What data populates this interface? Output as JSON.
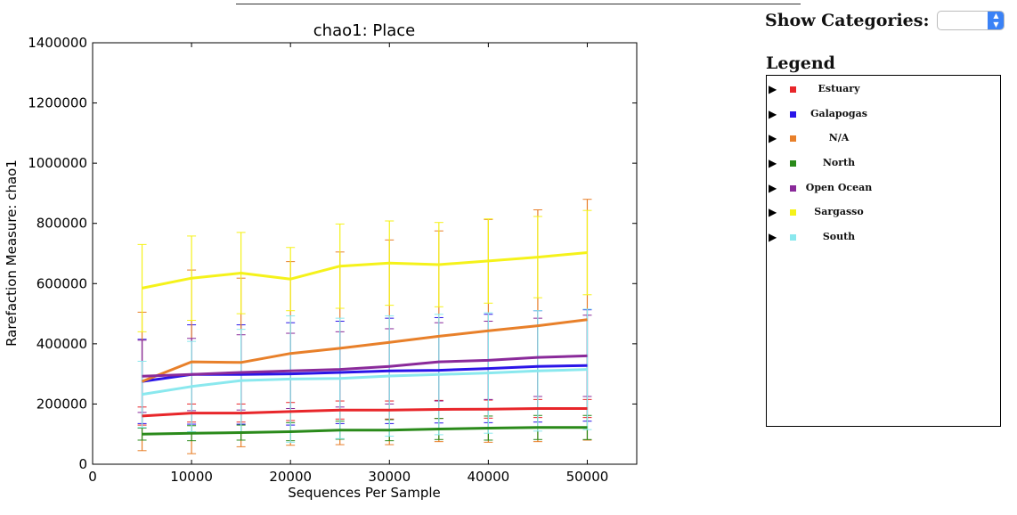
{
  "controls": {
    "show_categories_label": "Show Categories:",
    "selected_value": ""
  },
  "legend": {
    "title": "Legend",
    "items": [
      {
        "label": "Estuary",
        "color": "#e8262a"
      },
      {
        "label": "Galapogas",
        "color": "#2a15e8"
      },
      {
        "label": "N/A",
        "color": "#e8802a"
      },
      {
        "label": "North",
        "color": "#2a8a1a"
      },
      {
        "label": "Open Ocean",
        "color": "#8a2a9a"
      },
      {
        "label": "Sargasso",
        "color": "#f5f21a"
      },
      {
        "label": "South",
        "color": "#8ae8ee"
      }
    ]
  },
  "chart_data": {
    "type": "line",
    "title": "chao1: Place",
    "xlabel": "Sequences Per Sample",
    "ylabel": "Rarefaction Measure: chao1",
    "xlim": [
      0,
      55000
    ],
    "ylim": [
      0,
      1400000
    ],
    "x_ticks": [
      0,
      10000,
      20000,
      30000,
      40000,
      50000
    ],
    "y_ticks": [
      0,
      200000,
      400000,
      600000,
      800000,
      1000000,
      1200000,
      1400000
    ],
    "x": [
      5000,
      10000,
      15000,
      20000,
      25000,
      30000,
      35000,
      40000,
      45000,
      50000
    ],
    "series": [
      {
        "name": "Estuary",
        "color": "#e8262a",
        "values": [
          160000,
          170000,
          170000,
          175000,
          180000,
          180000,
          182000,
          183000,
          185000,
          185000
        ],
        "err": [
          30000,
          30000,
          30000,
          30000,
          30000,
          30000,
          30000,
          30000,
          30000,
          30000
        ]
      },
      {
        "name": "Galapogas",
        "color": "#2a15e8",
        "values": [
          275000,
          298000,
          298000,
          300000,
          305000,
          310000,
          312000,
          318000,
          325000,
          328000
        ],
        "err": [
          140000,
          165000,
          165000,
          170000,
          170000,
          175000,
          175000,
          180000,
          185000,
          185000
        ]
      },
      {
        "name": "N/A",
        "color": "#e8802a",
        "values": [
          275000,
          340000,
          338000,
          368000,
          385000,
          405000,
          425000,
          443000,
          460000,
          480000
        ],
        "err": [
          230000,
          305000,
          280000,
          305000,
          320000,
          340000,
          350000,
          370000,
          385000,
          400000
        ]
      },
      {
        "name": "North",
        "color": "#2a8a1a",
        "values": [
          100000,
          103000,
          105000,
          108000,
          113000,
          113000,
          117000,
          120000,
          122000,
          122000
        ],
        "err": [
          20000,
          25000,
          25000,
          30000,
          30000,
          35000,
          35000,
          40000,
          40000,
          40000
        ]
      },
      {
        "name": "Open Ocean",
        "color": "#8a2a9a",
        "values": [
          292000,
          298000,
          305000,
          310000,
          315000,
          325000,
          340000,
          345000,
          355000,
          360000
        ],
        "err": [
          120000,
          120000,
          125000,
          125000,
          125000,
          125000,
          130000,
          130000,
          130000,
          135000
        ]
      },
      {
        "name": "Sargasso",
        "color": "#f5f21a",
        "values": [
          585000,
          618000,
          635000,
          615000,
          658000,
          668000,
          663000,
          675000,
          688000,
          703000
        ],
        "err": [
          145000,
          140000,
          135000,
          105000,
          140000,
          140000,
          140000,
          140000,
          135000,
          140000
        ]
      },
      {
        "name": "South",
        "color": "#8ae8ee",
        "values": [
          232000,
          258000,
          278000,
          283000,
          285000,
          293000,
          298000,
          303000,
          310000,
          315000
        ],
        "err": [
          110000,
          150000,
          170000,
          210000,
          200000,
          200000,
          200000,
          200000,
          200000,
          200000
        ]
      }
    ]
  }
}
